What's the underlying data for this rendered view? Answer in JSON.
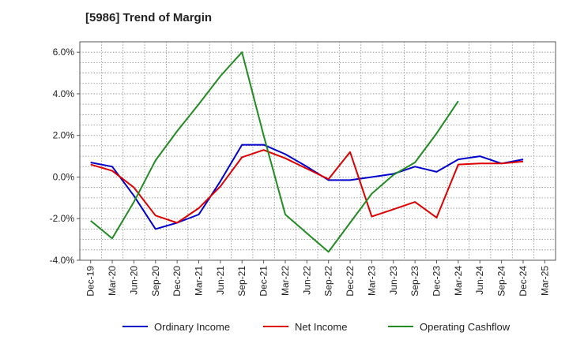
{
  "chart_data": {
    "type": "line",
    "title": "[5986]  Trend of Margin",
    "xlabel": "",
    "ylabel": "",
    "categories": [
      "Dec-19",
      "Mar-20",
      "Jun-20",
      "Sep-20",
      "Dec-20",
      "Mar-21",
      "Jun-21",
      "Sep-21",
      "Dec-21",
      "Mar-22",
      "Jun-22",
      "Sep-22",
      "Dec-22",
      "Mar-23",
      "Jun-23",
      "Sep-23",
      "Dec-23",
      "Mar-24",
      "Jun-24",
      "Sep-24",
      "Dec-24",
      "Mar-25"
    ],
    "ylim": [
      -4.0,
      6.5
    ],
    "yticks": [
      6.0,
      4.0,
      2.0,
      0.0,
      -2.0,
      -4.0
    ],
    "ytick_labels": [
      "6.0%",
      "4.0%",
      "2.0%",
      "0.0%",
      "-2.0%",
      "-4.0%"
    ],
    "grid": true,
    "legend_position": "bottom",
    "series": [
      {
        "name": "Ordinary Income",
        "color": "#0000cc",
        "values": [
          0.7,
          0.5,
          -0.9,
          -2.5,
          -2.2,
          -1.8,
          -0.2,
          1.55,
          1.55,
          1.1,
          0.5,
          -0.15,
          -0.15,
          0.0,
          0.15,
          0.5,
          0.25,
          0.85,
          1.0,
          0.65,
          0.85,
          null
        ]
      },
      {
        "name": "Net Income",
        "color": "#dd0000",
        "values": [
          0.6,
          0.3,
          -0.5,
          -1.85,
          -2.2,
          -1.5,
          -0.45,
          0.95,
          1.3,
          0.9,
          0.4,
          -0.1,
          1.2,
          -1.9,
          -1.55,
          -1.2,
          -1.95,
          0.6,
          0.65,
          0.65,
          0.75,
          null
        ]
      },
      {
        "name": "Operating Cashflow",
        "color": "#228B22",
        "values": [
          -2.1,
          -2.95,
          -1.2,
          0.8,
          2.2,
          3.5,
          4.85,
          6.0,
          2.0,
          -1.8,
          -2.7,
          -3.6,
          -2.2,
          -0.8,
          0.1,
          0.7,
          2.1,
          3.65,
          null,
          null,
          null,
          null
        ]
      }
    ]
  }
}
